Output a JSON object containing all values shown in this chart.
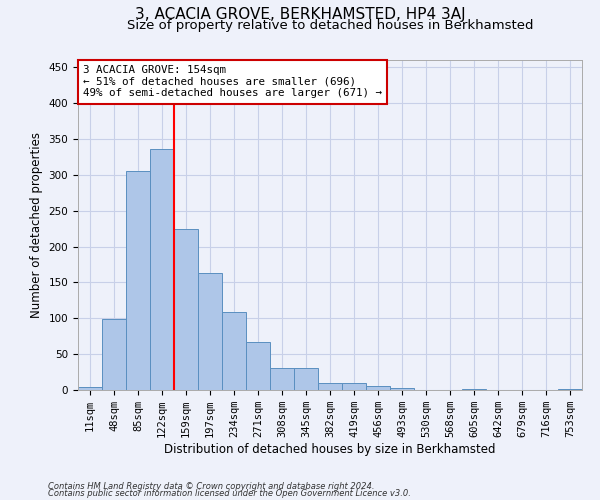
{
  "title": "3, ACACIA GROVE, BERKHAMSTED, HP4 3AJ",
  "subtitle": "Size of property relative to detached houses in Berkhamsted",
  "xlabel": "Distribution of detached houses by size in Berkhamsted",
  "ylabel": "Number of detached properties",
  "categories": [
    "11sqm",
    "48sqm",
    "85sqm",
    "122sqm",
    "159sqm",
    "197sqm",
    "234sqm",
    "271sqm",
    "308sqm",
    "345sqm",
    "382sqm",
    "419sqm",
    "456sqm",
    "493sqm",
    "530sqm",
    "568sqm",
    "605sqm",
    "642sqm",
    "679sqm",
    "716sqm",
    "753sqm"
  ],
  "values": [
    4,
    99,
    305,
    336,
    225,
    163,
    109,
    67,
    31,
    31,
    10,
    10,
    6,
    3,
    0,
    0,
    2,
    0,
    0,
    0,
    2
  ],
  "bar_color": "#aec6e8",
  "bar_edge_color": "#5a8fc0",
  "redline_index": 3,
  "annotation_text": "3 ACACIA GROVE: 154sqm\n← 51% of detached houses are smaller (696)\n49% of semi-detached houses are larger (671) →",
  "annotation_box_color": "#ffffff",
  "annotation_box_edge_color": "#cc0000",
  "footer_line1": "Contains HM Land Registry data © Crown copyright and database right 2024.",
  "footer_line2": "Contains public sector information licensed under the Open Government Licence v3.0.",
  "ylim": [
    0,
    460
  ],
  "yticks": [
    0,
    50,
    100,
    150,
    200,
    250,
    300,
    350,
    400,
    450
  ],
  "background_color": "#eef1fa",
  "grid_color": "#c8d0e8",
  "title_fontsize": 11,
  "subtitle_fontsize": 9.5,
  "tick_fontsize": 7.5,
  "label_fontsize": 8.5,
  "annotation_fontsize": 7.8,
  "footer_fontsize": 6.0
}
